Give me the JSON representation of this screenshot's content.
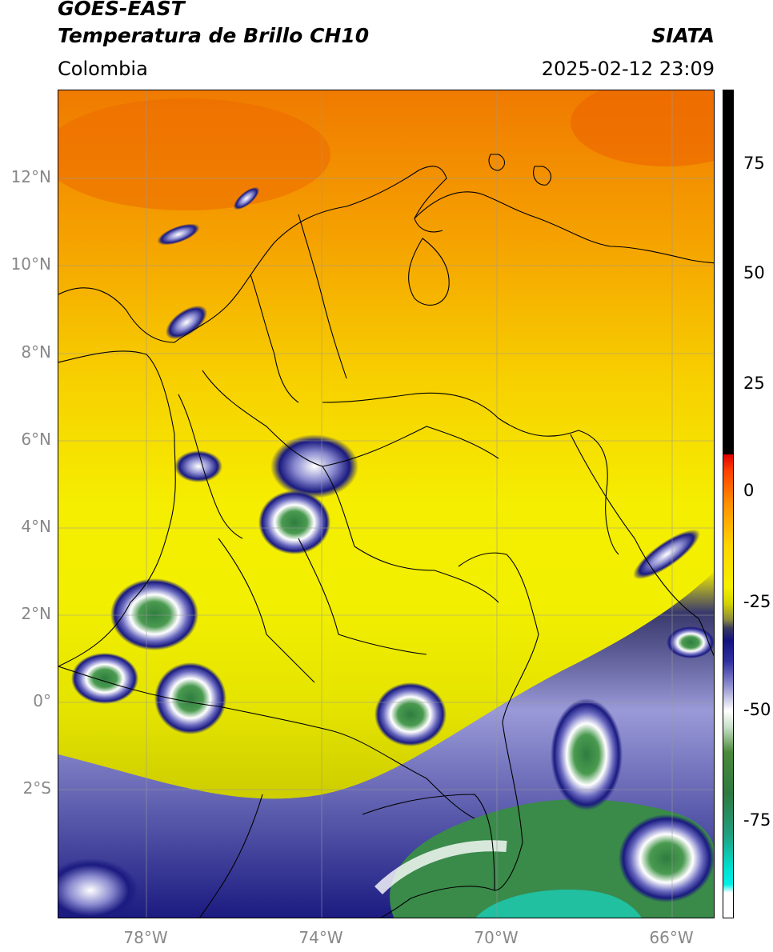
{
  "header": {
    "title_line1": "GOES-EAST",
    "title_line2": "Temperatura de Brillo CH10",
    "region": "Colombia",
    "brand": "SIATA",
    "timestamp": "2025-02-12 23:09"
  },
  "axes": {
    "latitude_labels": [
      "12°N",
      "10°N",
      "8°N",
      "6°N",
      "4°N",
      "2°N",
      "0°",
      "2°S"
    ],
    "longitude_labels": [
      "78°W",
      "74°W",
      "70°W",
      "66°W"
    ]
  },
  "colorbar": {
    "tick_labels": [
      "75",
      "50",
      "25",
      "0",
      "-25",
      "-50",
      "-75"
    ],
    "colors": {
      "warm_top": "#000000",
      "red": "#e00000",
      "orange": "#ff9000",
      "yellow": "#f6f000",
      "dark_blue": "#141480",
      "white": "#ffffff",
      "green": "#2e7a40",
      "cyan": "#00e0d0"
    }
  }
}
